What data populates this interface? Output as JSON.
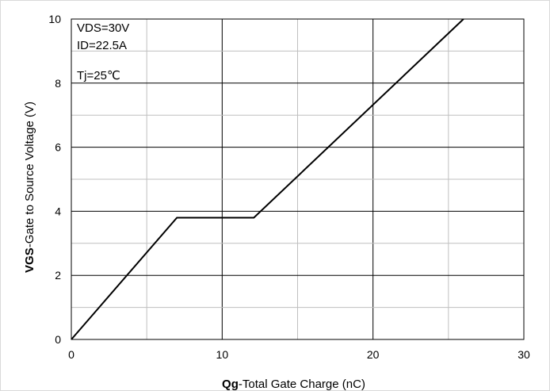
{
  "chart_data": {
    "type": "line",
    "xlabel": {
      "bold": "Qg",
      "rest": "-Total Gate Charge (nC)"
    },
    "ylabel": {
      "bold": "VGS",
      "rest": "-Gate to Source Voltage (V)"
    },
    "xlim": [
      0,
      30
    ],
    "ylim": [
      0,
      10
    ],
    "x_ticks": [
      0,
      10,
      20,
      30
    ],
    "y_ticks": [
      0,
      2,
      4,
      6,
      8,
      10
    ],
    "grid": true,
    "annotations": [
      "VDS=30V",
      "ID=22.5A",
      "Tj=25℃"
    ],
    "series": [
      {
        "x": [
          0,
          7,
          12.1,
          26
        ],
        "y": [
          0,
          3.8,
          3.8,
          10
        ]
      }
    ],
    "line_color": "#000000",
    "major_grid_color": "#000000",
    "minor_grid_color": "#bfbfbf"
  }
}
